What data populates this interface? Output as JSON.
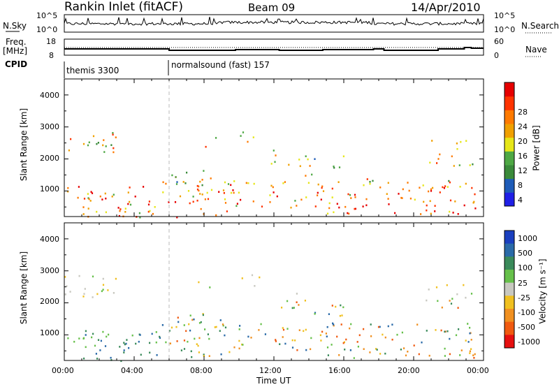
{
  "header": {
    "station": "Rankin Inlet (fitACF)",
    "beam": "Beam 09",
    "date": "14/Apr/2010"
  },
  "side_labels": {
    "nsky": "N.Sky",
    "freq": "Freq.",
    "freq_unit": "[MHz]",
    "cpid": "CPID",
    "nsearch": "N.Search",
    "nave": "Nave"
  },
  "noise_panel": {
    "left_ticks": [
      "10^5",
      "10^0"
    ],
    "right_ticks": [
      "10^5",
      "10^0"
    ]
  },
  "freq_panel": {
    "left_ticks": [
      "18",
      "8"
    ],
    "right_ticks": [
      "60",
      "0"
    ]
  },
  "cpid_panel": {
    "segments": [
      {
        "label": "themis 3300",
        "start_hour": 0
      },
      {
        "label": "normalsound (fast) 157",
        "start_hour": 6
      }
    ]
  },
  "chart_data": [
    {
      "type": "heatmap",
      "name": "power",
      "ylabel": "Slant Range [km]",
      "yticks": [
        "1000",
        "2000",
        "3000",
        "4000"
      ],
      "ylim": [
        200,
        4500
      ],
      "colorbar_label": "Power [dB]",
      "colorbar_ticks": [
        "4",
        "8",
        "12",
        "16",
        "20",
        "24",
        "28"
      ],
      "colors": [
        "#1f1fe6",
        "#1e5cb8",
        "#3a8a3a",
        "#4ea844",
        "#e6e619",
        "#f0a000",
        "#ff7a00",
        "#ff3300",
        "#e60000"
      ]
    },
    {
      "type": "heatmap",
      "name": "velocity",
      "ylabel": "Slant Range [km]",
      "yticks": [
        "1000",
        "2000",
        "3000",
        "4000"
      ],
      "ylim": [
        200,
        4500
      ],
      "colorbar_label": "Velocity [m s⁻¹]",
      "colorbar_ticks": [
        "1000",
        "500",
        "100",
        "25",
        "-25",
        "-100",
        "-500",
        "-1000"
      ],
      "colors": [
        "#1a3fbf",
        "#2a6aa8",
        "#3a8a5a",
        "#66c04a",
        "#c8c8c0",
        "#f0c020",
        "#f09020",
        "#f05a10",
        "#e61010"
      ]
    }
  ],
  "xaxis": {
    "label": "Time UT",
    "ticks": [
      "00:00",
      "04:00",
      "08:00",
      "12:00",
      "16:00",
      "20:00",
      "00:00"
    ]
  }
}
